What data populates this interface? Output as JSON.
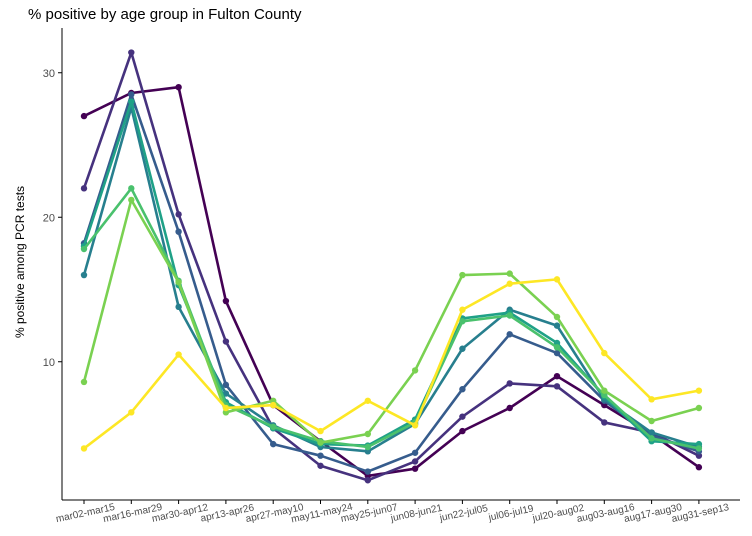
{
  "chart_data": {
    "type": "line",
    "title": "% positive by age group in Fulton County",
    "xlabel": "",
    "ylabel": "% positive among PCR tests",
    "categories": [
      "mar02-mar15",
      "mar16-mar29",
      "mar30-apr12",
      "apr13-apr26",
      "apr27-may10",
      "may11-may24",
      "may25-jun07",
      "jun08-jun21",
      "jun22-jul05",
      "jul06-jul19",
      "jul20-aug02",
      "aug03-aug16",
      "aug17-aug30",
      "aug31-sep13"
    ],
    "yticks": [
      10,
      20,
      30
    ],
    "ylim": [
      0,
      32.5
    ],
    "grid": false,
    "legend": "none",
    "series": [
      {
        "color": "#440154",
        "values": [
          27.0,
          28.6,
          29.0,
          14.2,
          7.0,
          4.5,
          2.1,
          2.6,
          5.2,
          6.8,
          9.0,
          7.0,
          5.0,
          2.7
        ]
      },
      {
        "color": "#46327e",
        "values": [
          22.0,
          31.4,
          20.2,
          11.4,
          5.4,
          2.8,
          1.8,
          3.1,
          6.2,
          8.5,
          8.3,
          5.8,
          5.1,
          3.5
        ]
      },
      {
        "color": "#365c8d",
        "values": [
          18.2,
          28.5,
          19.0,
          8.4,
          4.3,
          3.5,
          2.4,
          3.7,
          8.1,
          11.9,
          10.6,
          7.3,
          4.9,
          3.8
        ]
      },
      {
        "color": "#277f8e",
        "values": [
          16.0,
          27.6,
          13.8,
          7.8,
          5.6,
          4.1,
          3.8,
          5.7,
          10.9,
          13.6,
          12.5,
          7.4,
          5.1,
          4.1
        ]
      },
      {
        "color": "#1fa187",
        "values": [
          18.0,
          28.0,
          15.3,
          7.2,
          5.4,
          4.3,
          4.2,
          6.0,
          13.0,
          13.4,
          11.3,
          7.6,
          4.5,
          4.3
        ]
      },
      {
        "color": "#4ac16d",
        "values": [
          17.8,
          22.0,
          15.6,
          7.0,
          5.5,
          4.5,
          4.1,
          5.8,
          12.8,
          13.2,
          11.0,
          7.7,
          4.7,
          4.0
        ]
      },
      {
        "color": "#7ad151",
        "values": [
          8.6,
          21.2,
          15.5,
          6.5,
          7.3,
          4.4,
          5.0,
          9.4,
          16.0,
          16.1,
          13.1,
          8.0,
          5.9,
          6.8
        ]
      },
      {
        "color": "#fde725",
        "values": [
          4.0,
          6.5,
          10.5,
          6.8,
          7.0,
          5.2,
          7.3,
          5.6,
          13.6,
          15.4,
          15.7,
          10.6,
          7.4,
          8.0
        ]
      }
    ]
  }
}
